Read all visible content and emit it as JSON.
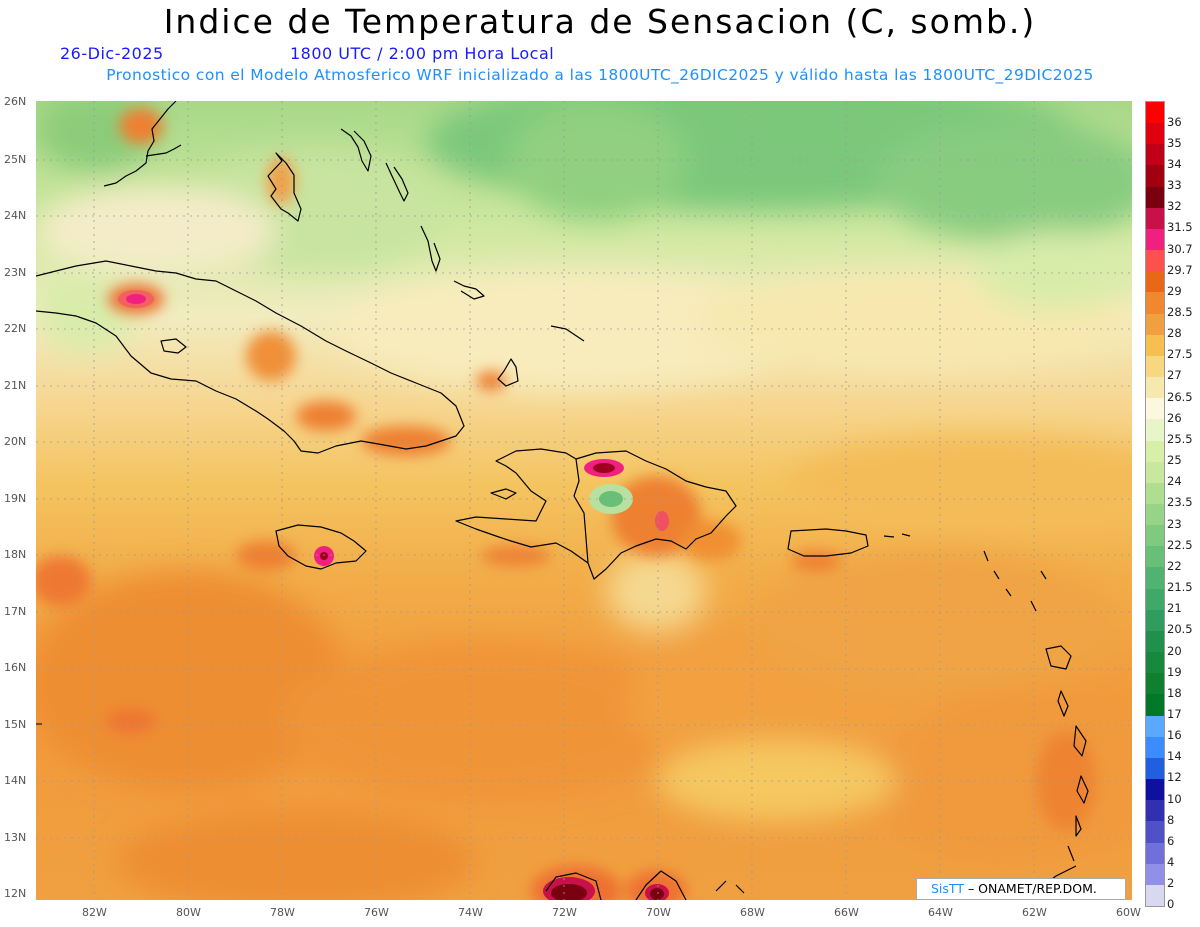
{
  "header": {
    "title": "Indice de Temperatura de Sensacion (C, somb.)",
    "date": "26-Dic-2025",
    "time": "1800 UTC / 2:00 pm Hora Local",
    "forecast": "Pronostico con el Modelo Atmosferico WRF inicializado a las 1800UTC_26DIC2025 y válido hasta las  1800UTC_29DIC2025"
  },
  "credit": {
    "logo": "SisTT",
    "text": " – ONAMET/REP.DOM."
  },
  "lat_labels": [
    "26N",
    "25N",
    "24N",
    "23N",
    "22N",
    "21N",
    "20N",
    "19N",
    "18N",
    "17N",
    "16N",
    "15N",
    "14N",
    "13N",
    "12N"
  ],
  "lon_labels": [
    "82W",
    "80W",
    "78W",
    "76W",
    "74W",
    "72W",
    "70W",
    "68W",
    "66W",
    "64W",
    "62W",
    "60W"
  ],
  "colorbar": {
    "labels": [
      "36",
      "35",
      "34",
      "33",
      "32",
      "31.5",
      "30.7",
      "29.7",
      "29",
      "28.5",
      "28",
      "27.5",
      "27",
      "26.5",
      "26",
      "25.5",
      "25",
      "24",
      "23.5",
      "23",
      "22.5",
      "22",
      "21.5",
      "21",
      "20.5",
      "20",
      "19",
      "18",
      "17",
      "16",
      "14",
      "12",
      "10",
      "8",
      "6",
      "4",
      "2",
      "0"
    ],
    "colors": [
      "#ff0000",
      "#e00010",
      "#c00018",
      "#a00010",
      "#7a0010",
      "#c8104a",
      "#f02080",
      "#ff5050",
      "#e86818",
      "#f08830",
      "#f0a040",
      "#f5c050",
      "#f7d880",
      "#f7e8b0",
      "#fcf8e0",
      "#e8f5c8",
      "#d8efa8",
      "#c8e8a0",
      "#b0de90",
      "#98d488",
      "#80ca80",
      "#68c078",
      "#50b470",
      "#40a868",
      "#309c60",
      "#20904c",
      "#18883c",
      "#108030",
      "#007828",
      "#5aa8ff",
      "#3c8cff",
      "#2060e0",
      "#1010a0",
      "#3030b0",
      "#5050c8",
      "#7070d8",
      "#9090e8",
      "#d8d8f0"
    ]
  }
}
